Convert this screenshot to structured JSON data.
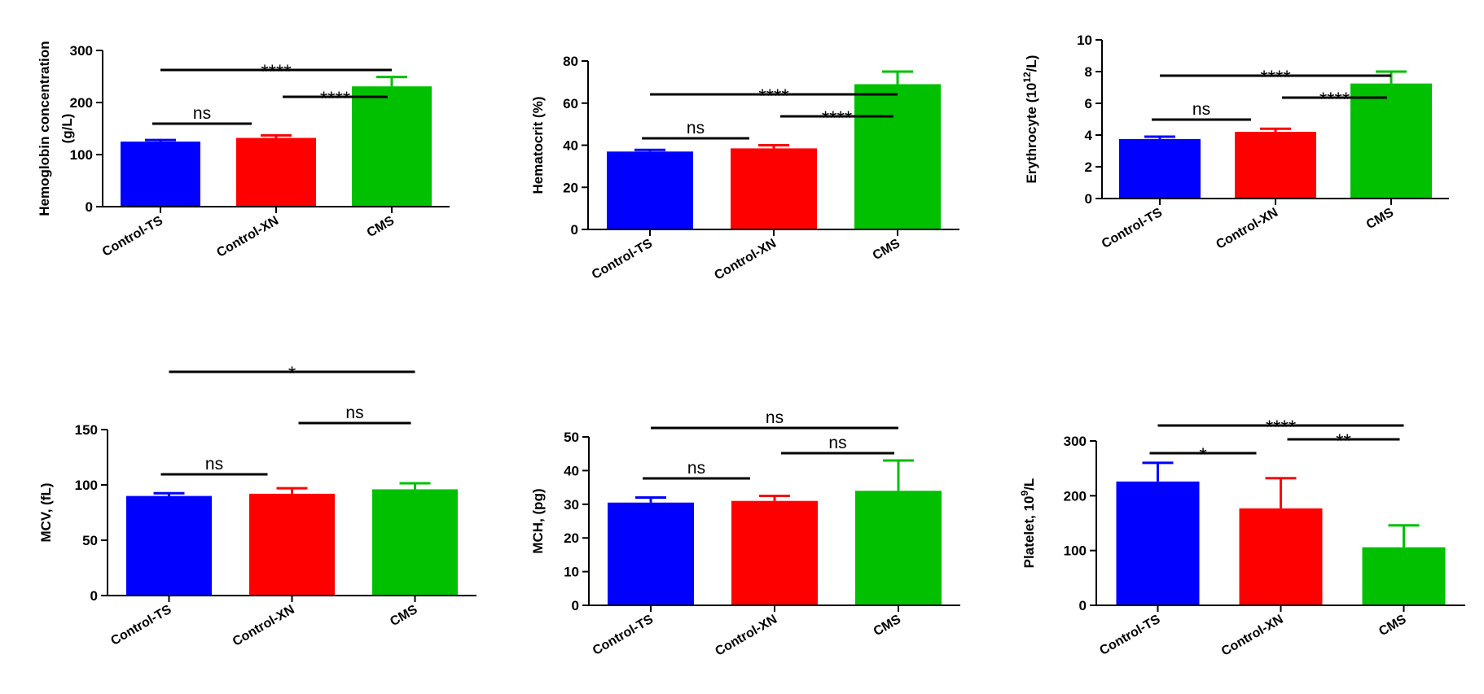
{
  "colors": {
    "Control-TS": "#0000ff",
    "Control-XN": "#ff0000",
    "CMS": "#00c000",
    "axis": "#000000"
  },
  "chart_data": [
    {
      "type": "bar",
      "categories": [
        "Control-TS",
        "Control-XN",
        "CMS"
      ],
      "values": [
        125,
        132,
        231
      ],
      "errors": [
        3,
        5,
        18
      ],
      "ylabel": "Hemoglobin concentration",
      "ylabel2": "(g/L)",
      "ylim": [
        0,
        300
      ],
      "yticks": [
        0,
        100,
        200,
        300
      ],
      "significance": [
        {
          "from": 0,
          "to": 1,
          "label": "ns"
        },
        {
          "from": 1,
          "to": 2,
          "label": "****"
        },
        {
          "from": 0,
          "to": 2,
          "label": "****"
        }
      ]
    },
    {
      "type": "bar",
      "categories": [
        "Control-TS",
        "Control-XN",
        "CMS"
      ],
      "values": [
        37,
        38.5,
        69
      ],
      "errors": [
        0.8,
        1.5,
        6
      ],
      "ylabel": "Hematocrit (%)",
      "ylim": [
        0,
        80
      ],
      "yticks": [
        0,
        20,
        40,
        60,
        80
      ],
      "significance": [
        {
          "from": 0,
          "to": 1,
          "label": "ns"
        },
        {
          "from": 1,
          "to": 2,
          "label": "****"
        },
        {
          "from": 0,
          "to": 2,
          "label": "****"
        }
      ]
    },
    {
      "type": "bar",
      "categories": [
        "Control-TS",
        "Control-XN",
        "CMS"
      ],
      "values": [
        3.75,
        4.2,
        7.25
      ],
      "errors": [
        0.15,
        0.2,
        0.75
      ],
      "ylabel": "Erythrocyte (10",
      "ylabel_sup": "12",
      "ylabel_end": "/L)",
      "ylim": [
        0,
        10
      ],
      "yticks": [
        0,
        2,
        4,
        6,
        8,
        10
      ],
      "significance": [
        {
          "from": 0,
          "to": 1,
          "label": "ns"
        },
        {
          "from": 1,
          "to": 2,
          "label": "****"
        },
        {
          "from": 0,
          "to": 2,
          "label": "****"
        }
      ]
    },
    {
      "type": "bar",
      "categories": [
        "Control-TS",
        "Control-XN",
        "CMS"
      ],
      "values": [
        90,
        92,
        96
      ],
      "errors": [
        2.5,
        5,
        5.5
      ],
      "ylabel": "MCV, (fL)",
      "ylim": [
        0,
        150
      ],
      "yticks": [
        0,
        50,
        100,
        150
      ],
      "significance": [
        {
          "from": 0,
          "to": 1,
          "label": "ns"
        },
        {
          "from": 1,
          "to": 2,
          "label": "ns"
        },
        {
          "from": 0,
          "to": 2,
          "label": "*"
        }
      ]
    },
    {
      "type": "bar",
      "categories": [
        "Control-TS",
        "Control-XN",
        "CMS"
      ],
      "values": [
        30.5,
        31,
        34
      ],
      "errors": [
        1.5,
        1.5,
        9
      ],
      "ylabel": "MCH, (pg)",
      "ylim": [
        0,
        50
      ],
      "yticks": [
        0,
        10,
        20,
        30,
        40,
        50
      ],
      "significance": [
        {
          "from": 0,
          "to": 1,
          "label": "ns"
        },
        {
          "from": 1,
          "to": 2,
          "label": "ns"
        },
        {
          "from": 0,
          "to": 2,
          "label": "ns"
        }
      ]
    },
    {
      "type": "bar",
      "categories": [
        "Control-TS",
        "Control-XN",
        "CMS"
      ],
      "values": [
        226,
        177,
        106
      ],
      "errors": [
        34,
        55,
        40
      ],
      "ylabel": "Platelet, 10",
      "ylabel_sup": "9",
      "ylabel_end": "/L",
      "ylim": [
        0,
        300
      ],
      "yticks": [
        0,
        100,
        200,
        300
      ],
      "significance": [
        {
          "from": 0,
          "to": 1,
          "label": "*"
        },
        {
          "from": 1,
          "to": 2,
          "label": "**"
        },
        {
          "from": 0,
          "to": 2,
          "label": "****"
        }
      ]
    }
  ]
}
